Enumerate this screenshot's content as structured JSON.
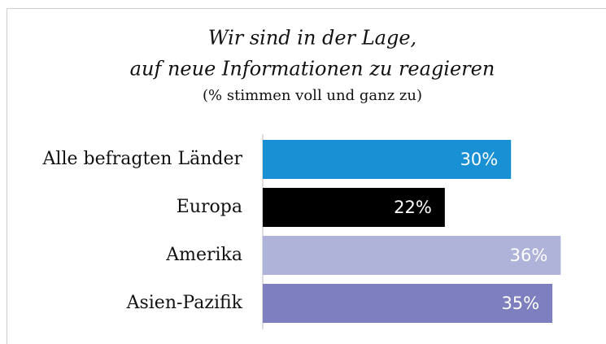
{
  "chart_data": {
    "type": "bar",
    "orientation": "horizontal",
    "title": [
      "Wir sind in der Lage,",
      "auf neue Informationen zu reagieren"
    ],
    "subtitle": "(% stimmen voll und ganz zu)",
    "categories": [
      "Alle befragten Länder",
      "Europa",
      "Amerika",
      "Asien-Pazifik"
    ],
    "values": [
      30,
      22,
      36,
      35
    ],
    "value_labels": [
      "30%",
      "22%",
      "36%",
      "35%"
    ],
    "colors": [
      "#1a90d4",
      "#000000",
      "#afb2d9",
      "#7e7fbf"
    ],
    "xlim": [
      0,
      40
    ]
  }
}
